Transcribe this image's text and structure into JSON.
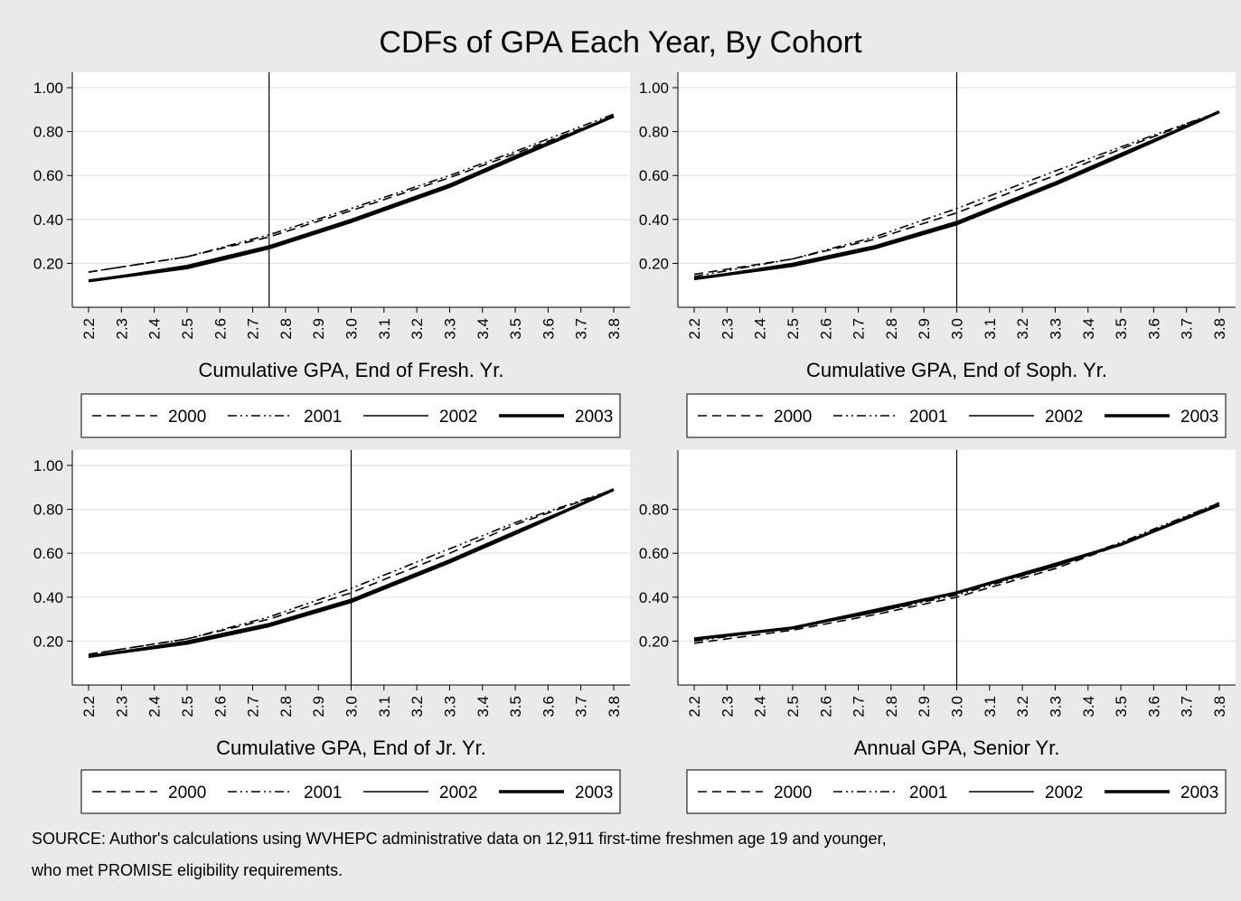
{
  "figure": {
    "title": "CDFs of GPA Each Year, By Cohort",
    "source_line1": "SOURCE: Author's calculations using WVHEPC administrative data on 12,911 first-time freshmen age 19 and younger,",
    "source_line2": "who met PROMISE eligibility requirements."
  },
  "colors": {
    "background": "#eaeaea",
    "plot_area": "#ffffff",
    "grid": "#e3e3e3",
    "lines": "#000000"
  },
  "chart_data": [
    {
      "type": "line",
      "xlabel": "Cumulative GPA, End of Fresh. Yr.",
      "x_ticks": [
        "2.2",
        "2.3",
        "2.4",
        "2.5",
        "2.6",
        "2.7",
        "2.8",
        "2.9",
        "3.0",
        "3.1",
        "3.2",
        "3.3",
        "3.4",
        "3.5",
        "3.6",
        "3.7",
        "3.8"
      ],
      "y_ticks": [
        "0.20",
        "0.40",
        "0.60",
        "0.80",
        "1.00"
      ],
      "xlim": [
        2.2,
        3.8
      ],
      "ylim": [
        0,
        1.07
      ],
      "grid": true,
      "vline": 2.75,
      "legend_position": "bottom",
      "x": [
        2.2,
        2.5,
        2.75,
        3.0,
        3.3,
        3.5,
        3.8
      ],
      "series": [
        {
          "name": "2000",
          "style": "dash",
          "values": [
            0.16,
            0.23,
            0.32,
            0.44,
            0.59,
            0.7,
            0.87
          ]
        },
        {
          "name": "2001",
          "style": "dashdot",
          "values": [
            0.16,
            0.23,
            0.33,
            0.45,
            0.6,
            0.71,
            0.88
          ]
        },
        {
          "name": "2002",
          "style": "solid",
          "values": [
            0.12,
            0.19,
            0.28,
            0.4,
            0.56,
            0.69,
            0.87
          ]
        },
        {
          "name": "2003",
          "style": "thick",
          "values": [
            0.12,
            0.18,
            0.27,
            0.39,
            0.55,
            0.68,
            0.87
          ]
        }
      ]
    },
    {
      "type": "line",
      "xlabel": "Cumulative GPA, End of Soph. Yr.",
      "x_ticks": [
        "2.2",
        "2.3",
        "2.4",
        "2.5",
        "2.6",
        "2.7",
        "2.8",
        "2.9",
        "3.0",
        "3.1",
        "3.2",
        "3.3",
        "3.4",
        "3.5",
        "3.6",
        "3.7",
        "3.8"
      ],
      "y_ticks": [
        "0.20",
        "0.40",
        "0.60",
        "0.80",
        "1.00"
      ],
      "xlim": [
        2.2,
        3.8
      ],
      "ylim": [
        0,
        1.07
      ],
      "grid": true,
      "vline": 3.0,
      "legend_position": "bottom",
      "x": [
        2.2,
        2.5,
        2.75,
        3.0,
        3.3,
        3.5,
        3.8
      ],
      "series": [
        {
          "name": "2000",
          "style": "dash",
          "values": [
            0.15,
            0.22,
            0.31,
            0.43,
            0.6,
            0.72,
            0.89
          ]
        },
        {
          "name": "2001",
          "style": "dashdot",
          "values": [
            0.14,
            0.22,
            0.32,
            0.45,
            0.62,
            0.73,
            0.89
          ]
        },
        {
          "name": "2002",
          "style": "solid",
          "values": [
            0.13,
            0.2,
            0.28,
            0.39,
            0.57,
            0.7,
            0.89
          ]
        },
        {
          "name": "2003",
          "style": "thick",
          "values": [
            0.13,
            0.19,
            0.27,
            0.38,
            0.56,
            0.69,
            0.89
          ]
        }
      ]
    },
    {
      "type": "line",
      "xlabel": "Cumulative GPA, End of Jr. Yr.",
      "x_ticks": [
        "2.2",
        "2.3",
        "2.4",
        "2.5",
        "2.6",
        "2.7",
        "2.8",
        "2.9",
        "3.0",
        "3.1",
        "3.2",
        "3.3",
        "3.4",
        "3.5",
        "3.6",
        "3.7",
        "3.8"
      ],
      "y_ticks": [
        "0.20",
        "0.40",
        "0.60",
        "0.80",
        "1.00"
      ],
      "xlim": [
        2.2,
        3.8
      ],
      "ylim": [
        0,
        1.07
      ],
      "grid": true,
      "vline": 3.0,
      "legend_position": "bottom",
      "x": [
        2.2,
        2.5,
        2.75,
        3.0,
        3.3,
        3.5,
        3.8
      ],
      "series": [
        {
          "name": "2000",
          "style": "dash",
          "values": [
            0.14,
            0.21,
            0.3,
            0.42,
            0.6,
            0.73,
            0.89
          ]
        },
        {
          "name": "2001",
          "style": "dashdot",
          "values": [
            0.14,
            0.21,
            0.31,
            0.44,
            0.62,
            0.74,
            0.89
          ]
        },
        {
          "name": "2002",
          "style": "solid",
          "values": [
            0.13,
            0.2,
            0.28,
            0.39,
            0.57,
            0.7,
            0.89
          ]
        },
        {
          "name": "2003",
          "style": "thick",
          "values": [
            0.13,
            0.19,
            0.27,
            0.38,
            0.56,
            0.69,
            0.89
          ]
        }
      ]
    },
    {
      "type": "line",
      "xlabel": "Annual GPA, Senior Yr.",
      "x_ticks": [
        "2.2",
        "2.3",
        "2.4",
        "2.5",
        "2.6",
        "2.7",
        "2.8",
        "2.9",
        "3.0",
        "3.1",
        "3.2",
        "3.3",
        "3.4",
        "3.5",
        "3.6",
        "3.7",
        "3.8"
      ],
      "y_ticks": [
        "0.20",
        "0.40",
        "0.60",
        "0.80"
      ],
      "xlim": [
        2.2,
        3.8
      ],
      "ylim": [
        0,
        1.07
      ],
      "grid": true,
      "vline": 3.0,
      "legend_position": "bottom",
      "x": [
        2.2,
        2.5,
        2.75,
        3.0,
        3.3,
        3.5,
        3.8
      ],
      "series": [
        {
          "name": "2000",
          "style": "dash",
          "values": [
            0.19,
            0.25,
            0.32,
            0.4,
            0.53,
            0.64,
            0.83
          ]
        },
        {
          "name": "2001",
          "style": "dashdot",
          "values": [
            0.2,
            0.26,
            0.33,
            0.41,
            0.54,
            0.65,
            0.83
          ]
        },
        {
          "name": "2002",
          "style": "solid",
          "values": [
            0.21,
            0.26,
            0.33,
            0.42,
            0.54,
            0.64,
            0.82
          ]
        },
        {
          "name": "2003",
          "style": "thick",
          "values": [
            0.21,
            0.26,
            0.34,
            0.42,
            0.55,
            0.64,
            0.82
          ]
        }
      ]
    }
  ]
}
